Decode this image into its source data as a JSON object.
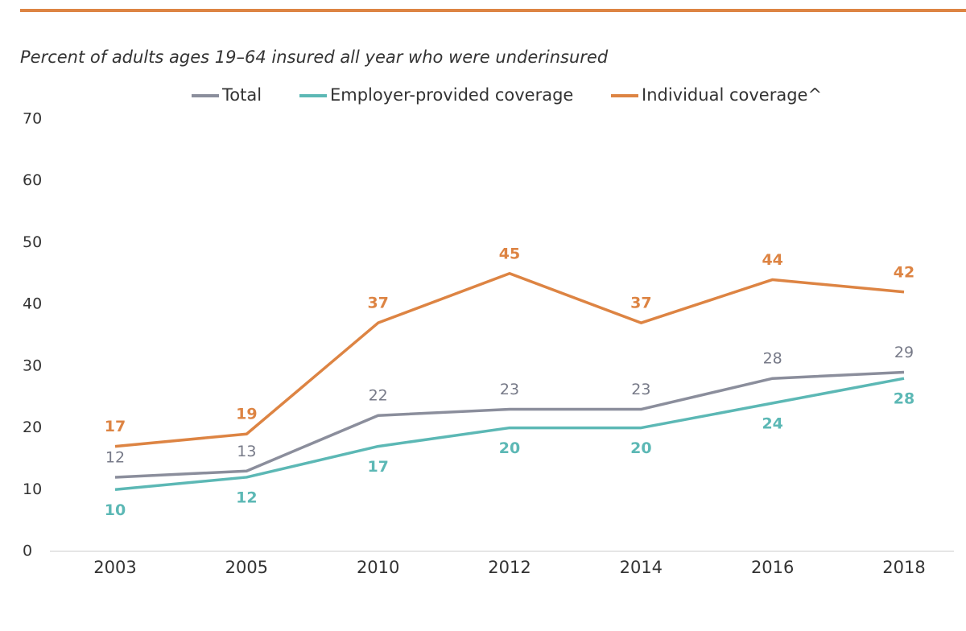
{
  "chart_data": {
    "type": "line",
    "subtitle": "Percent of adults ages 19–64 insured all year who were underinsured",
    "categories": [
      "2003",
      "2005",
      "2010",
      "2012",
      "2014",
      "2016",
      "2018"
    ],
    "series": [
      {
        "name": "Total",
        "color": "#8b8e9c",
        "values": [
          12,
          13,
          22,
          23,
          23,
          28,
          29
        ]
      },
      {
        "name": "Employer-provided coverage",
        "color": "#5cb8b5",
        "values": [
          10,
          12,
          17,
          20,
          20,
          24,
          28
        ]
      },
      {
        "name": "Individual coverage^",
        "color": "#dd8443",
        "values": [
          17,
          19,
          37,
          45,
          37,
          44,
          42
        ]
      }
    ],
    "ylim": [
      0,
      70
    ],
    "yticks": [
      0,
      10,
      20,
      30,
      40,
      50,
      60,
      70
    ],
    "grid": false
  }
}
